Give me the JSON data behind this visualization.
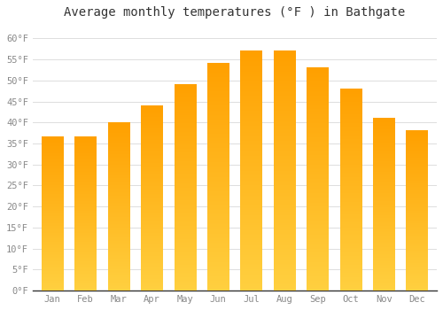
{
  "title": "Average monthly temperatures (°F ) in Bathgate",
  "months": [
    "Jan",
    "Feb",
    "Mar",
    "Apr",
    "May",
    "Jun",
    "Jul",
    "Aug",
    "Sep",
    "Oct",
    "Nov",
    "Dec"
  ],
  "values": [
    36.5,
    36.5,
    40.0,
    44.0,
    49.0,
    54.0,
    57.0,
    57.0,
    53.0,
    48.0,
    41.0,
    38.0
  ],
  "bar_color_top": "#FFD040",
  "bar_color_bottom": "#FFA000",
  "ylim": [
    0,
    63
  ],
  "yticks": [
    0,
    5,
    10,
    15,
    20,
    25,
    30,
    35,
    40,
    45,
    50,
    55,
    60
  ],
  "ytick_labels": [
    "0°F",
    "5°F",
    "10°F",
    "15°F",
    "20°F",
    "25°F",
    "30°F",
    "35°F",
    "40°F",
    "45°F",
    "50°F",
    "55°F",
    "60°F"
  ],
  "background_color": "#FFFFFF",
  "plot_bg_color": "#FFFFFF",
  "grid_color": "#DDDDDD",
  "title_fontsize": 10,
  "tick_fontsize": 7.5,
  "axis_color": "#333333"
}
